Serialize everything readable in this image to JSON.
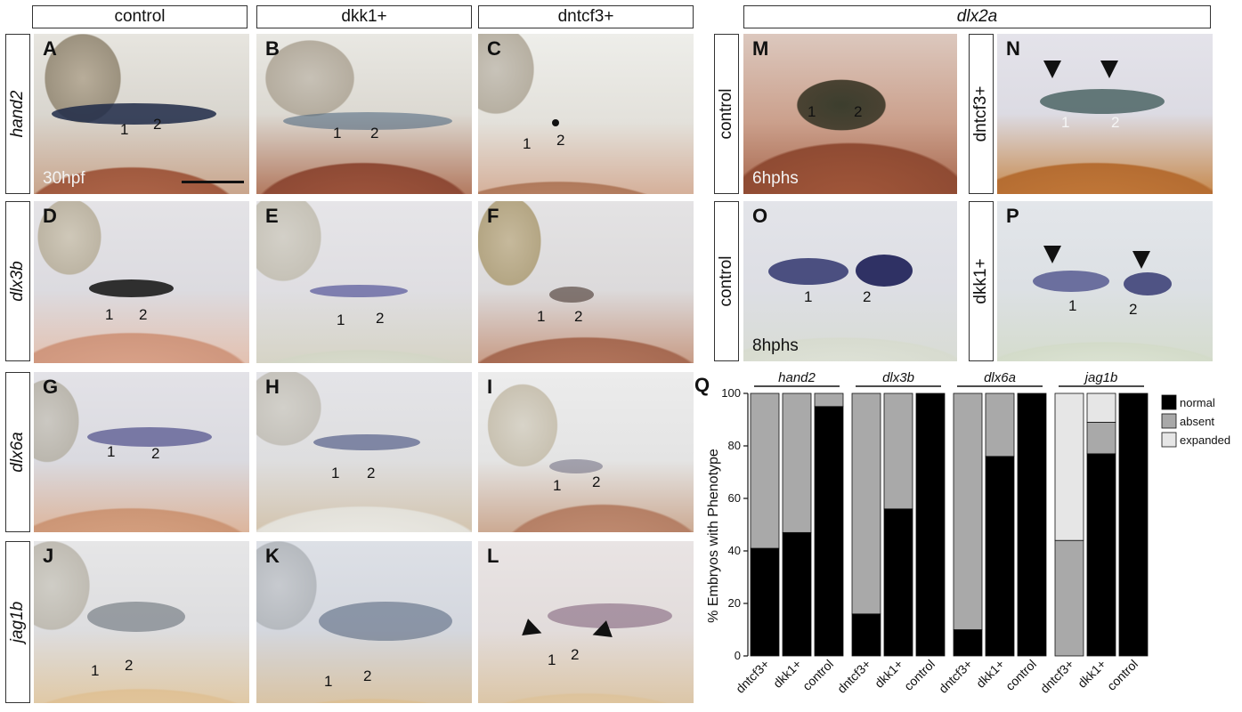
{
  "columns": {
    "control": "control",
    "dkk1": "dkk1+",
    "dntcf3": "dntcf3+",
    "dlx2a": "dlx2a"
  },
  "rows": {
    "hand2": "hand2",
    "dlx3b": "dlx3b",
    "dlx6a": "dlx6a",
    "jag1b": "jag1b"
  },
  "dlx2a_rows": {
    "control_top": "control",
    "dntcf3": "dntcf3+",
    "control_bottom": "control",
    "dkk1": "dkk1+"
  },
  "panels": {
    "A": {
      "label": "A",
      "n1": "1",
      "n2": "2",
      "stage": "30hpf"
    },
    "B": {
      "label": "B",
      "n1": "1",
      "n2": "2"
    },
    "C": {
      "label": "C",
      "n1": "1",
      "n2": "2"
    },
    "D": {
      "label": "D",
      "n1": "1",
      "n2": "2"
    },
    "E": {
      "label": "E",
      "n1": "1",
      "n2": "2"
    },
    "F": {
      "label": "F",
      "n1": "1",
      "n2": "2"
    },
    "G": {
      "label": "G",
      "n1": "1",
      "n2": "2"
    },
    "H": {
      "label": "H",
      "n1": "1",
      "n2": "2"
    },
    "I": {
      "label": "I",
      "n1": "1",
      "n2": "2"
    },
    "J": {
      "label": "J",
      "n1": "1",
      "n2": "2"
    },
    "K": {
      "label": "K",
      "n1": "1",
      "n2": "2"
    },
    "L": {
      "label": "L",
      "n1": "1",
      "n2": "2"
    },
    "M": {
      "label": "M",
      "n1": "1",
      "n2": "2",
      "stage": "6hphs"
    },
    "N": {
      "label": "N",
      "n1": "1",
      "n2": "2"
    },
    "O": {
      "label": "O",
      "n1": "1",
      "n2": "2",
      "stage": "8hphs"
    },
    "P": {
      "label": "P",
      "n1": "1",
      "n2": "2"
    }
  },
  "colors": {
    "normal": "#000000",
    "absent": "#a9a9a9",
    "expanded": "#e6e6e6"
  },
  "chart_data": {
    "type": "bar",
    "panel_label": "Q",
    "ylabel": "% Embryos with Phenotype",
    "ylim": [
      0,
      100
    ],
    "yticks": [
      0,
      20,
      40,
      60,
      80,
      100
    ],
    "stacked": true,
    "groups": [
      {
        "name": "hand2",
        "bars": [
          {
            "label": "dntcf3+",
            "normal": 41,
            "absent": 59,
            "expanded": 0
          },
          {
            "label": "dkk1+",
            "normal": 47,
            "absent": 53,
            "expanded": 0
          },
          {
            "label": "control",
            "normal": 95,
            "absent": 5,
            "expanded": 0
          }
        ]
      },
      {
        "name": "dlx3b",
        "bars": [
          {
            "label": "dntcf3+",
            "normal": 16,
            "absent": 84,
            "expanded": 0
          },
          {
            "label": "dkk1+",
            "normal": 56,
            "absent": 44,
            "expanded": 0
          },
          {
            "label": "control",
            "normal": 100,
            "absent": 0,
            "expanded": 0
          }
        ]
      },
      {
        "name": "dlx6a",
        "bars": [
          {
            "label": "dntcf3+",
            "normal": 10,
            "absent": 90,
            "expanded": 0
          },
          {
            "label": "dkk1+",
            "normal": 76,
            "absent": 24,
            "expanded": 0
          },
          {
            "label": "control",
            "normal": 100,
            "absent": 0,
            "expanded": 0
          }
        ]
      },
      {
        "name": "jag1b",
        "bars": [
          {
            "label": "dntcf3+",
            "normal": 0,
            "absent": 44,
            "expanded": 56
          },
          {
            "label": "dkk1+",
            "normal": 77,
            "absent": 12,
            "expanded": 11
          },
          {
            "label": "control",
            "normal": 100,
            "absent": 0,
            "expanded": 0
          }
        ]
      }
    ],
    "legend": [
      {
        "key": "normal",
        "label": "normal"
      },
      {
        "key": "absent",
        "label": "absent"
      },
      {
        "key": "expanded",
        "label": "expanded"
      }
    ],
    "legend_position": "top-right"
  }
}
